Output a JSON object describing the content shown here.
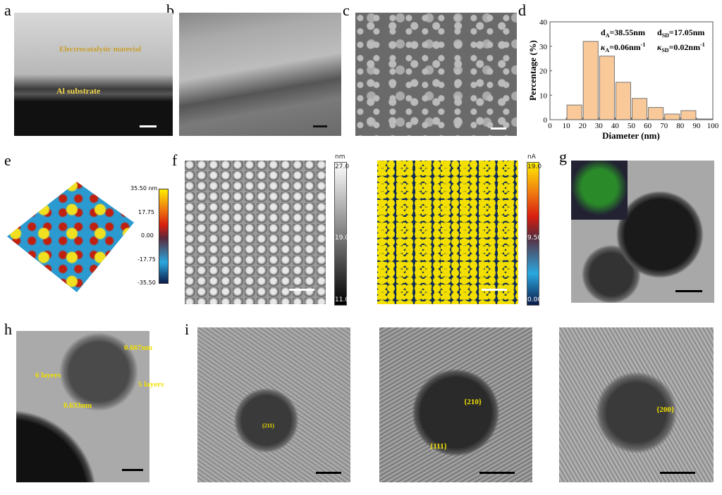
{
  "panels": {
    "a": "a",
    "b": "b",
    "c": "c",
    "d": "d",
    "e": "e",
    "f": "f",
    "g": "g",
    "h": "h",
    "i": "i"
  },
  "panel_a": {
    "material_label": "Electrocatalytic material",
    "substrate_label": "Al substrate"
  },
  "panel_e": {
    "colorbar_ticks": [
      "35.50 nm",
      "17.75",
      "0.00",
      "-17.75",
      "-35.50"
    ],
    "colors": [
      "#0b1a4a",
      "#2aa8e0",
      "#7a1a1a",
      "#d81e10",
      "#ffee00"
    ]
  },
  "panel_f": {
    "height_unit": "nm",
    "height_ticks": [
      "27.0",
      "19.0",
      "11.0"
    ],
    "current_unit": "nA",
    "current_ticks": [
      "19.0",
      "9.50",
      "0.00"
    ]
  },
  "panel_h": {
    "labels": [
      "0.667nm",
      "6 layers",
      "5 layers",
      "0.633nm"
    ]
  },
  "panel_i": {
    "labels": [
      "(211)",
      "{210}",
      "{111}",
      "{200}"
    ]
  },
  "chart_data": {
    "type": "bar",
    "xlabel": "Diameter (nm)",
    "ylabel": "Percentage (%)",
    "xlim": [
      0,
      100
    ],
    "ylim": [
      0,
      40
    ],
    "xticks": [
      "0",
      "10",
      "20",
      "30",
      "40",
      "50",
      "60",
      "70",
      "80",
      "90",
      "100"
    ],
    "yticks": [
      "0",
      "10",
      "20",
      "30",
      "40"
    ],
    "bins": [
      [
        0,
        10
      ],
      [
        10,
        20
      ],
      [
        20,
        30
      ],
      [
        30,
        40
      ],
      [
        40,
        50
      ],
      [
        50,
        60
      ],
      [
        60,
        70
      ],
      [
        70,
        80
      ],
      [
        80,
        90
      ],
      [
        90,
        100
      ]
    ],
    "values": [
      0,
      6,
      32,
      26,
      15.3,
      8.7,
      5,
      2.3,
      3.7,
      0.3
    ],
    "bar_color": "#f9c99a",
    "annotations": {
      "dA": "d",
      "dA_sub": "A",
      "dA_val": "=38.55nm",
      "dSD": "d",
      "dSD_sub": "SD",
      "dSD_val": "=17.05nm",
      "kA": "κ",
      "kA_sub": "A",
      "kA_val": "=0.06nm",
      "kSD": "κ",
      "kSD_sub": "SD",
      "kSD_val": "=0.02nm",
      "exp": "-1"
    },
    "grid": false
  }
}
